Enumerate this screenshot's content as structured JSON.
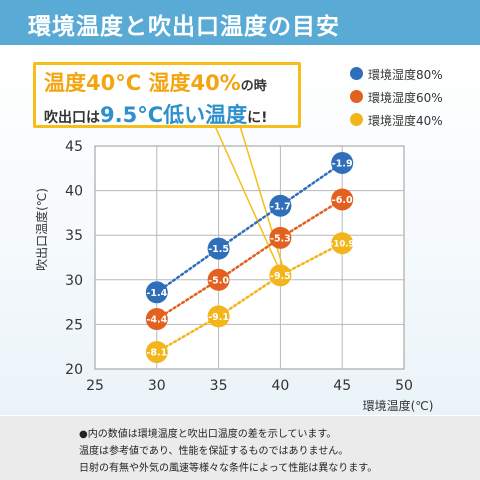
{
  "header": {
    "title": "環境温度と吹出口温度の目安"
  },
  "callout": {
    "line1_a": "温度40°C",
    "line1_b": "湿度40%",
    "line1_c": "の時",
    "line2_a": "吹出口は",
    "line2_b": "9.5°C",
    "line2_c": "低い温度",
    "line2_d": "に!"
  },
  "colors": {
    "header": "#5aaad6",
    "callout_border": "#f7bd18",
    "accent_blue": "#2e8fcf"
  },
  "chart_data": {
    "type": "scatter",
    "xlabel": "環境温度(℃)",
    "ylabel": "吹出口温度(℃)",
    "xlim": [
      25,
      50
    ],
    "ylim": [
      20,
      45
    ],
    "xticks": [
      25,
      30,
      35,
      40,
      45,
      50
    ],
    "yticks": [
      20,
      25,
      30,
      35,
      40,
      45
    ],
    "grid": true,
    "legend_position": "top-right",
    "series": [
      {
        "name": "環境湿度80%",
        "color": "#2f6fba",
        "x": [
          30,
          35,
          40,
          45
        ],
        "y": [
          28.6,
          33.5,
          38.3,
          43.1
        ],
        "labels": [
          "-1.4",
          "-1.5",
          "-1.7",
          "-1.9"
        ]
      },
      {
        "name": "環境湿度60%",
        "color": "#e2611f",
        "x": [
          30,
          35,
          40,
          45
        ],
        "y": [
          25.6,
          30.0,
          34.7,
          39.0
        ],
        "labels": [
          "-4.4",
          "-5.0",
          "-5.3",
          "-6.0"
        ]
      },
      {
        "name": "環境湿度40%",
        "color": "#f3b51c",
        "x": [
          30,
          35,
          40,
          45
        ],
        "y": [
          21.9,
          25.9,
          30.5,
          34.1
        ],
        "labels": [
          "-8.1",
          "-9.1",
          "-9.5",
          "-10.9"
        ]
      }
    ]
  },
  "notes": [
    "●内の数値は環境温度と吹出口温度の差を示しています。",
    "温度は参考値であり、性能を保証するものではありません。",
    "日射の有無や外気の風速等様々な条件によって性能は異なります。"
  ]
}
